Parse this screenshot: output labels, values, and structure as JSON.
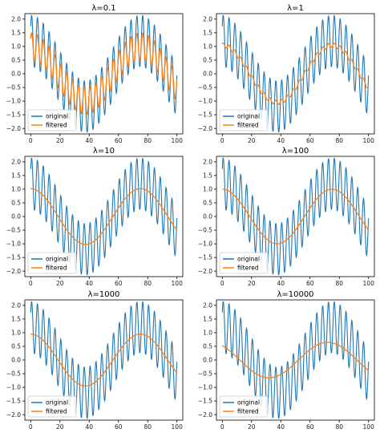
{
  "chart_data": [
    {
      "type": "line",
      "title": "λ=0.1",
      "xlim": [
        -4,
        104
      ],
      "ylim": [
        -2.2,
        2.2
      ],
      "xticks": [
        0,
        20,
        40,
        60,
        80,
        100
      ],
      "yticks": [
        -2.0,
        -1.5,
        -1.0,
        -0.5,
        0.0,
        0.5,
        1.0,
        1.5,
        2.0
      ],
      "legend": "lower-left",
      "series": [
        {
          "name": "original",
          "color": "#1f77b4",
          "model": {
            "base_amp": 1.2,
            "period": 75,
            "phase": 0.25,
            "noise_amp": 0.95,
            "noise_period": 4
          }
        },
        {
          "name": "filtered",
          "color": "#ff7f0e",
          "model": {
            "base_amp": 1.0,
            "period": 75,
            "phase": 0.25,
            "noise_amp": 0.5,
            "noise_period": 4
          }
        }
      ]
    },
    {
      "type": "line",
      "title": "λ=1",
      "xlim": [
        -4,
        104
      ],
      "ylim": [
        -2.2,
        2.2
      ],
      "xticks": [
        0,
        20,
        40,
        60,
        80,
        100
      ],
      "yticks": [
        -2.0,
        -1.5,
        -1.0,
        -0.5,
        0.0,
        0.5,
        1.0,
        1.5,
        2.0
      ],
      "legend": "lower-left",
      "series": [
        {
          "name": "original",
          "color": "#1f77b4",
          "model": {
            "base_amp": 1.2,
            "period": 75,
            "phase": 0.25,
            "noise_amp": 0.95,
            "noise_period": 4
          }
        },
        {
          "name": "filtered",
          "color": "#ff7f0e",
          "model": {
            "base_amp": 1.05,
            "period": 75,
            "phase": 0.25,
            "noise_amp": 0.08,
            "noise_period": 4
          }
        }
      ]
    },
    {
      "type": "line",
      "title": "λ=10",
      "xlim": [
        -4,
        104
      ],
      "ylim": [
        -2.2,
        2.2
      ],
      "xticks": [
        0,
        20,
        40,
        60,
        80,
        100
      ],
      "yticks": [
        -2.0,
        -1.5,
        -1.0,
        -0.5,
        0.0,
        0.5,
        1.0,
        1.5,
        2.0
      ],
      "legend": "lower-left",
      "series": [
        {
          "name": "original",
          "color": "#1f77b4",
          "model": {
            "base_amp": 1.2,
            "period": 75,
            "phase": 0.25,
            "noise_amp": 0.95,
            "noise_period": 4
          }
        },
        {
          "name": "filtered",
          "color": "#ff7f0e",
          "model": {
            "base_amp": 1.02,
            "period": 75,
            "phase": 0.25,
            "noise_amp": 0.0,
            "noise_period": 4
          }
        }
      ]
    },
    {
      "type": "line",
      "title": "λ=100",
      "xlim": [
        -4,
        104
      ],
      "ylim": [
        -2.2,
        2.2
      ],
      "xticks": [
        0,
        20,
        40,
        60,
        80,
        100
      ],
      "yticks": [
        -2.0,
        -1.5,
        -1.0,
        -0.5,
        0.0,
        0.5,
        1.0,
        1.5,
        2.0
      ],
      "legend": "lower-left",
      "series": [
        {
          "name": "original",
          "color": "#1f77b4",
          "model": {
            "base_amp": 1.2,
            "period": 75,
            "phase": 0.25,
            "noise_amp": 0.95,
            "noise_period": 4
          }
        },
        {
          "name": "filtered",
          "color": "#ff7f0e",
          "model": {
            "base_amp": 1.0,
            "period": 75,
            "phase": 0.25,
            "noise_amp": 0.0,
            "noise_period": 4
          }
        }
      ]
    },
    {
      "type": "line",
      "title": "λ=1000",
      "xlim": [
        -4,
        104
      ],
      "ylim": [
        -2.2,
        2.2
      ],
      "xticks": [
        0,
        20,
        40,
        60,
        80,
        100
      ],
      "yticks": [
        -2.0,
        -1.5,
        -1.0,
        -0.5,
        0.0,
        0.5,
        1.0,
        1.5,
        2.0
      ],
      "legend": "lower-left",
      "series": [
        {
          "name": "original",
          "color": "#1f77b4",
          "model": {
            "base_amp": 1.2,
            "period": 75,
            "phase": 0.25,
            "noise_amp": 0.95,
            "noise_period": 4
          }
        },
        {
          "name": "filtered",
          "color": "#ff7f0e",
          "model": {
            "base_amp": 0.95,
            "period": 75,
            "phase": 0.25,
            "noise_amp": 0.0,
            "noise_period": 4
          }
        }
      ]
    },
    {
      "type": "line",
      "title": "λ=10000",
      "xlim": [
        -4,
        104
      ],
      "ylim": [
        -2.2,
        2.2
      ],
      "xticks": [
        0,
        20,
        40,
        60,
        80,
        100
      ],
      "yticks": [
        -2.0,
        -1.5,
        -1.0,
        -0.5,
        0.0,
        0.5,
        1.0,
        1.5,
        2.0
      ],
      "legend": "lower-left",
      "series": [
        {
          "name": "original",
          "color": "#1f77b4",
          "model": {
            "base_amp": 1.2,
            "period": 75,
            "phase": 0.25,
            "noise_amp": 0.95,
            "noise_period": 4
          }
        },
        {
          "name": "filtered",
          "color": "#ff7f0e",
          "model": {
            "base_amp": 0.65,
            "period": 80,
            "phase": 0.35,
            "noise_amp": 0.0,
            "noise_period": 4
          }
        }
      ]
    }
  ]
}
